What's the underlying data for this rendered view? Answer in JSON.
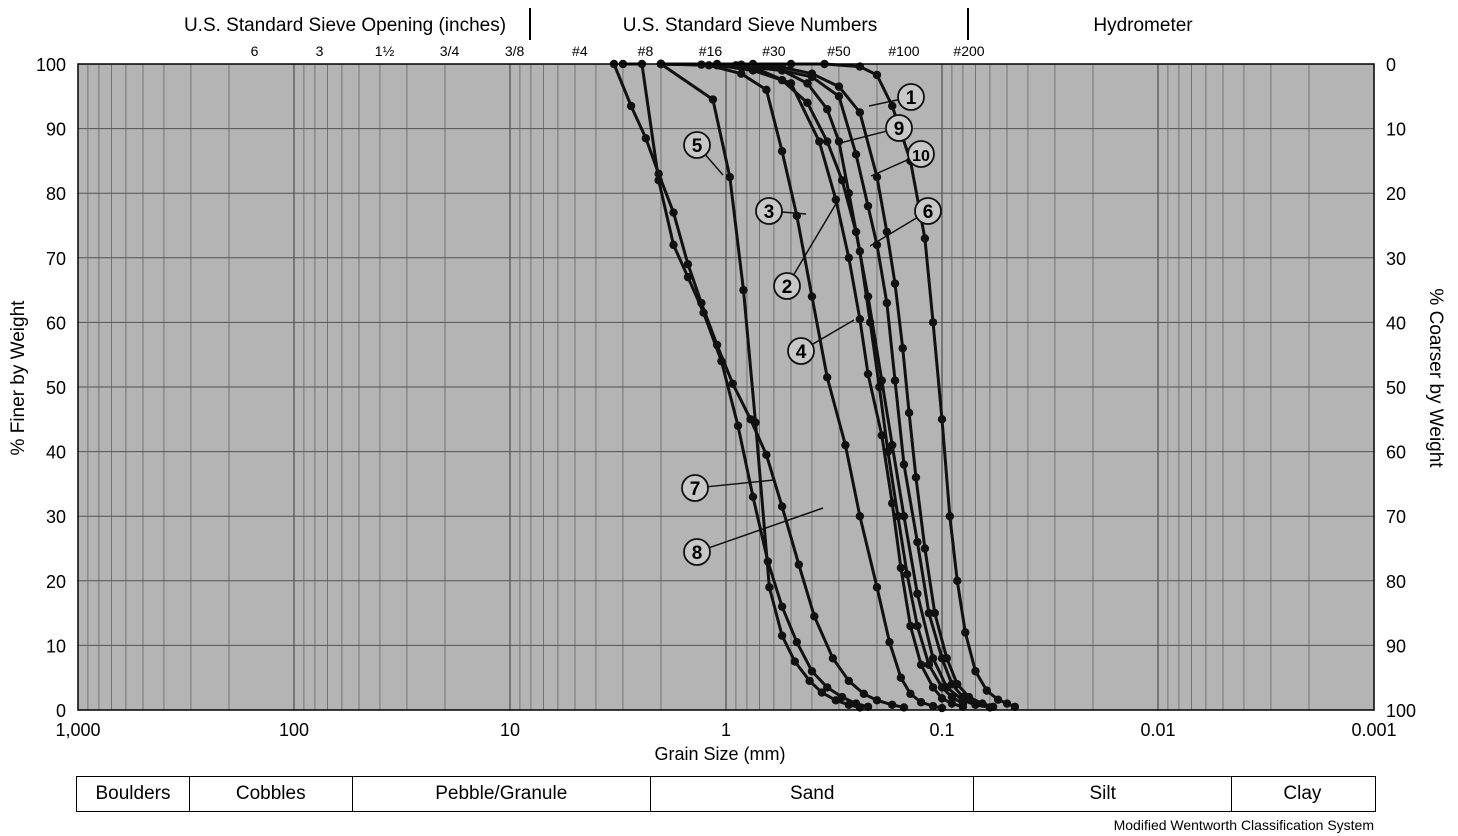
{
  "chart_data": {
    "type": "line",
    "x_axis": {
      "label": "Grain Size (mm)",
      "scale": "log",
      "reversed": true,
      "range": [
        1000,
        0.001
      ],
      "ticks": [
        {
          "value": 1000,
          "label": "1,000"
        },
        {
          "value": 100,
          "label": "100"
        },
        {
          "value": 10,
          "label": "10"
        },
        {
          "value": 1,
          "label": "1"
        },
        {
          "value": 0.1,
          "label": "0.1"
        },
        {
          "value": 0.01,
          "label": "0.01"
        },
        {
          "value": 0.001,
          "label": "0.001"
        }
      ]
    },
    "y_axis_left": {
      "label": "% Finer by Weight",
      "range": [
        0,
        100
      ],
      "ticks": [
        "0",
        "10",
        "20",
        "30",
        "40",
        "50",
        "60",
        "70",
        "80",
        "90",
        "100"
      ]
    },
    "y_axis_right": {
      "label": "% Coarser by Weight",
      "ticks": [
        "100",
        "90",
        "80",
        "70",
        "60",
        "50",
        "40",
        "30",
        "20",
        "10",
        "0"
      ]
    },
    "grid": true,
    "top_headers": [
      {
        "label": "U.S. Standard Sieve Opening (inches)"
      },
      {
        "label": "U.S. Standard Sieve Numbers"
      },
      {
        "label": "Hydrometer"
      }
    ],
    "sieve_openings": [
      {
        "label": "6",
        "mm": 152.4
      },
      {
        "label": "3",
        "mm": 76.2
      },
      {
        "label": "1½",
        "mm": 38.1
      },
      {
        "label": "3/4",
        "mm": 19.05
      },
      {
        "label": "3/8",
        "mm": 9.525
      }
    ],
    "sieve_numbers": [
      {
        "label": "#4",
        "mm": 4.75
      },
      {
        "label": "#8",
        "mm": 2.36
      },
      {
        "label": "#16",
        "mm": 1.18
      },
      {
        "label": "#30",
        "mm": 0.6
      },
      {
        "label": "#50",
        "mm": 0.3
      },
      {
        "label": "#100",
        "mm": 0.15
      },
      {
        "label": "#200",
        "mm": 0.075
      }
    ],
    "series": [
      {
        "name": "1",
        "points": [
          [
            2.0,
            100
          ],
          [
            0.75,
            100
          ],
          [
            0.5,
            100
          ],
          [
            0.35,
            100
          ],
          [
            0.24,
            99.6
          ],
          [
            0.2,
            98.3
          ],
          [
            0.17,
            93.5
          ],
          [
            0.14,
            85
          ],
          [
            0.12,
            73
          ],
          [
            0.11,
            60
          ],
          [
            0.1,
            45
          ],
          [
            0.092,
            30
          ],
          [
            0.085,
            20
          ],
          [
            0.078,
            12
          ],
          [
            0.07,
            6
          ],
          [
            0.062,
            3
          ],
          [
            0.055,
            1.6
          ],
          [
            0.05,
            1
          ],
          [
            0.046,
            0.5
          ]
        ]
      },
      {
        "name": "2",
        "points": [
          [
            2.0,
            100
          ],
          [
            1.1,
            99.8
          ],
          [
            0.75,
            99
          ],
          [
            0.55,
            97.5
          ],
          [
            0.42,
            94
          ],
          [
            0.34,
            88
          ],
          [
            0.29,
            82
          ],
          [
            0.25,
            74
          ],
          [
            0.22,
            64
          ],
          [
            0.19,
            51
          ],
          [
            0.17,
            41
          ],
          [
            0.15,
            30
          ],
          [
            0.13,
            18
          ],
          [
            0.11,
            8
          ],
          [
            0.095,
            3.5
          ],
          [
            0.08,
            1.5
          ],
          [
            0.07,
            0.8
          ],
          [
            0.06,
            0.4
          ]
        ]
      },
      {
        "name": "3",
        "points": [
          [
            2.0,
            100
          ],
          [
            1.2,
            99.8
          ],
          [
            0.85,
            98.5
          ],
          [
            0.65,
            96
          ],
          [
            0.55,
            86.5
          ],
          [
            0.47,
            76.5
          ],
          [
            0.4,
            64
          ],
          [
            0.34,
            51.5
          ],
          [
            0.28,
            41
          ],
          [
            0.24,
            30
          ],
          [
            0.2,
            19
          ],
          [
            0.175,
            10.5
          ],
          [
            0.155,
            5
          ],
          [
            0.14,
            2.5
          ],
          [
            0.125,
            1.2
          ],
          [
            0.11,
            0.6
          ],
          [
            0.1,
            0.3
          ]
        ]
      },
      {
        "name": "4",
        "points": [
          [
            2.0,
            100
          ],
          [
            1.3,
            99.9
          ],
          [
            0.75,
            99.5
          ],
          [
            0.5,
            97
          ],
          [
            0.37,
            88
          ],
          [
            0.31,
            79
          ],
          [
            0.27,
            70
          ],
          [
            0.24,
            60.5
          ],
          [
            0.22,
            52
          ],
          [
            0.19,
            42.5
          ],
          [
            0.17,
            32
          ],
          [
            0.155,
            22
          ],
          [
            0.14,
            13
          ],
          [
            0.125,
            7
          ],
          [
            0.11,
            3.5
          ],
          [
            0.1,
            1.8
          ],
          [
            0.09,
            1
          ],
          [
            0.08,
            0.5
          ]
        ]
      },
      {
        "name": "5",
        "points": [
          [
            2.0,
            100
          ],
          [
            1.15,
            94.5
          ],
          [
            0.96,
            82.5
          ],
          [
            0.83,
            65
          ],
          [
            0.73,
            44.5
          ],
          [
            0.63,
            19
          ],
          [
            0.55,
            11.5
          ],
          [
            0.48,
            7.5
          ],
          [
            0.41,
            4.5
          ],
          [
            0.36,
            2.7
          ],
          [
            0.31,
            1.5
          ],
          [
            0.27,
            0.8
          ],
          [
            0.24,
            0.4
          ]
        ]
      },
      {
        "name": "6",
        "points": [
          [
            2.0,
            100
          ],
          [
            0.9,
            99.8
          ],
          [
            0.55,
            99
          ],
          [
            0.4,
            98
          ],
          [
            0.3,
            95
          ],
          [
            0.25,
            86
          ],
          [
            0.22,
            78
          ],
          [
            0.2,
            72
          ],
          [
            0.18,
            63
          ],
          [
            0.165,
            51
          ],
          [
            0.15,
            38
          ],
          [
            0.13,
            26
          ],
          [
            0.115,
            15
          ],
          [
            0.1,
            8
          ],
          [
            0.09,
            4
          ],
          [
            0.08,
            2
          ],
          [
            0.07,
            1
          ]
        ]
      },
      {
        "name": "7",
        "points": [
          [
            3.0,
            100
          ],
          [
            2.45,
            100
          ],
          [
            2.05,
            82
          ],
          [
            1.75,
            72
          ],
          [
            1.5,
            67
          ],
          [
            1.27,
            61.5
          ],
          [
            1.05,
            54
          ],
          [
            0.88,
            44
          ],
          [
            0.75,
            33
          ],
          [
            0.64,
            23
          ],
          [
            0.55,
            16
          ],
          [
            0.47,
            10.5
          ],
          [
            0.4,
            6
          ],
          [
            0.34,
            3.5
          ],
          [
            0.29,
            2
          ],
          [
            0.25,
            1
          ],
          [
            0.22,
            0.5
          ]
        ]
      },
      {
        "name": "8",
        "points": [
          [
            3.3,
            100
          ],
          [
            2.75,
            93.5
          ],
          [
            2.35,
            88.5
          ],
          [
            2.05,
            83
          ],
          [
            1.75,
            77
          ],
          [
            1.5,
            69
          ],
          [
            1.3,
            63
          ],
          [
            1.1,
            56.5
          ],
          [
            0.93,
            50.5
          ],
          [
            0.77,
            45
          ],
          [
            0.65,
            39.5
          ],
          [
            0.55,
            31.5
          ],
          [
            0.46,
            22.5
          ],
          [
            0.39,
            14.5
          ],
          [
            0.32,
            8
          ],
          [
            0.27,
            4.5
          ],
          [
            0.23,
            2.5
          ],
          [
            0.2,
            1.5
          ],
          [
            0.17,
            0.8
          ],
          [
            0.15,
            0.4
          ]
        ]
      },
      {
        "name": "9",
        "points": [
          [
            2.0,
            100
          ],
          [
            1.1,
            100
          ],
          [
            0.75,
            99.5
          ],
          [
            0.55,
            99
          ],
          [
            0.42,
            97
          ],
          [
            0.34,
            93
          ],
          [
            0.3,
            88
          ],
          [
            0.27,
            80
          ],
          [
            0.24,
            71
          ],
          [
            0.215,
            60
          ],
          [
            0.195,
            50
          ],
          [
            0.178,
            40
          ],
          [
            0.16,
            30
          ],
          [
            0.145,
            21
          ],
          [
            0.13,
            13
          ],
          [
            0.115,
            7
          ],
          [
            0.1,
            3.5
          ],
          [
            0.09,
            2
          ],
          [
            0.08,
            1
          ]
        ]
      },
      {
        "name": "10",
        "points": [
          [
            2.0,
            100
          ],
          [
            0.85,
            99.9
          ],
          [
            0.55,
            99.5
          ],
          [
            0.4,
            98.5
          ],
          [
            0.3,
            96.5
          ],
          [
            0.24,
            92.5
          ],
          [
            0.2,
            82.5
          ],
          [
            0.18,
            74
          ],
          [
            0.165,
            66
          ],
          [
            0.152,
            56
          ],
          [
            0.142,
            46
          ],
          [
            0.132,
            36
          ],
          [
            0.12,
            25
          ],
          [
            0.108,
            15
          ],
          [
            0.095,
            8
          ],
          [
            0.085,
            4
          ],
          [
            0.075,
            2
          ],
          [
            0.065,
            1
          ],
          [
            0.058,
            0.5
          ]
        ]
      }
    ],
    "series_labels": [
      {
        "series": "1",
        "text": "1"
      },
      {
        "series": "9",
        "text": "9"
      },
      {
        "series": "10",
        "text": "10"
      },
      {
        "series": "6",
        "text": "6"
      },
      {
        "series": "5",
        "text": "5"
      },
      {
        "series": "3",
        "text": "3"
      },
      {
        "series": "2",
        "text": "2"
      },
      {
        "series": "4",
        "text": "4"
      },
      {
        "series": "7",
        "text": "7"
      },
      {
        "series": "8",
        "text": "8"
      }
    ]
  },
  "classification": {
    "cells": [
      {
        "label": "Boulders",
        "from_mm": 1000,
        "to_mm": 300
      },
      {
        "label": "Cobbles",
        "from_mm": 300,
        "to_mm": 53
      },
      {
        "label": "Pebble/Granule",
        "from_mm": 53,
        "to_mm": 2.2
      },
      {
        "label": "Sand",
        "from_mm": 2.2,
        "to_mm": 0.07
      },
      {
        "label": "Silt",
        "from_mm": 0.07,
        "to_mm": 0.0045
      },
      {
        "label": "Clay",
        "from_mm": 0.0045,
        "to_mm": 0.001
      }
    ],
    "footnote": "Modified Wentworth Classification System"
  }
}
